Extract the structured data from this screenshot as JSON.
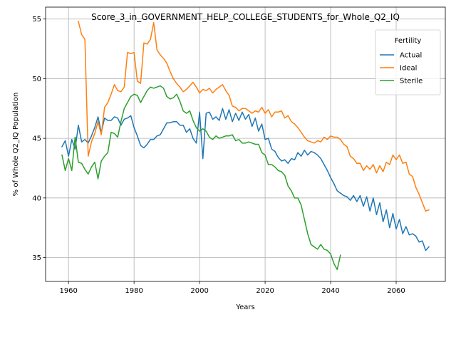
{
  "chart_data": {
    "type": "line",
    "title": "Score_3_in_GOVERNMENT_HELP_COLLEGE_STUDENTS_for_Whole_Q2_IQ",
    "xlabel": "Years",
    "ylabel": "% of Whole Q2_IQ Population",
    "xlim": [
      1953,
      2075
    ],
    "ylim": [
      33,
      56
    ],
    "xticks": [
      1960,
      1980,
      2000,
      2020,
      2040,
      2060
    ],
    "yticks": [
      35,
      40,
      45,
      50,
      55
    ],
    "grid": true,
    "legend_title": "Fertility",
    "legend_position": "upper right",
    "series": [
      {
        "name": "Actual",
        "color": "#1f77b4",
        "points": [
          [
            1958,
            44.3
          ],
          [
            1959,
            44.8
          ],
          [
            1960,
            43.5
          ],
          [
            1961,
            44.9
          ],
          [
            1962,
            44.1
          ],
          [
            1963,
            46.1
          ],
          [
            1964,
            44.7
          ],
          [
            1965,
            44.9
          ],
          [
            1966,
            44.6
          ],
          [
            1967,
            45.2
          ],
          [
            1968,
            45.9
          ],
          [
            1969,
            46.8
          ],
          [
            1970,
            45.5
          ],
          [
            1971,
            46.7
          ],
          [
            1972,
            46.5
          ],
          [
            1973,
            46.5
          ],
          [
            1974,
            46.8
          ],
          [
            1975,
            46.7
          ],
          [
            1976,
            46.1
          ],
          [
            1977,
            46.6
          ],
          [
            1978,
            46.7
          ],
          [
            1979,
            46.9
          ],
          [
            1980,
            45.9
          ],
          [
            1981,
            45.2
          ],
          [
            1982,
            44.4
          ],
          [
            1983,
            44.2
          ],
          [
            1984,
            44.5
          ],
          [
            1985,
            44.9
          ],
          [
            1986,
            44.9
          ],
          [
            1987,
            45.2
          ],
          [
            1988,
            45.3
          ],
          [
            1989,
            45.8
          ],
          [
            1990,
            46.3
          ],
          [
            1991,
            46.3
          ],
          [
            1992,
            46.4
          ],
          [
            1993,
            46.4
          ],
          [
            1994,
            46.1
          ],
          [
            1995,
            46.1
          ],
          [
            1996,
            45.5
          ],
          [
            1997,
            45.8
          ],
          [
            1998,
            45.0
          ],
          [
            1999,
            44.6
          ],
          [
            2000,
            47.2
          ],
          [
            2001,
            43.3
          ],
          [
            2002,
            47.1
          ],
          [
            2003,
            47.2
          ],
          [
            2004,
            46.6
          ],
          [
            2005,
            46.8
          ],
          [
            2006,
            46.5
          ],
          [
            2007,
            47.5
          ],
          [
            2008,
            46.6
          ],
          [
            2009,
            47.4
          ],
          [
            2010,
            46.4
          ],
          [
            2011,
            47.1
          ],
          [
            2012,
            46.5
          ],
          [
            2013,
            47.2
          ],
          [
            2014,
            46.6
          ],
          [
            2015,
            47.0
          ],
          [
            2016,
            46.0
          ],
          [
            2017,
            46.7
          ],
          [
            2018,
            45.6
          ],
          [
            2019,
            46.2
          ],
          [
            2020,
            44.9
          ],
          [
            2021,
            45.0
          ],
          [
            2022,
            44.1
          ],
          [
            2023,
            43.9
          ],
          [
            2024,
            43.4
          ],
          [
            2025,
            43.1
          ],
          [
            2026,
            43.2
          ],
          [
            2027,
            42.9
          ],
          [
            2028,
            43.3
          ],
          [
            2029,
            43.2
          ],
          [
            2030,
            43.8
          ],
          [
            2031,
            43.5
          ],
          [
            2032,
            44.0
          ],
          [
            2033,
            43.6
          ],
          [
            2034,
            43.9
          ],
          [
            2035,
            43.8
          ],
          [
            2036,
            43.6
          ],
          [
            2037,
            43.3
          ],
          [
            2038,
            42.8
          ],
          [
            2039,
            42.3
          ],
          [
            2040,
            41.7
          ],
          [
            2041,
            41.2
          ],
          [
            2042,
            40.6
          ],
          [
            2043,
            40.4
          ],
          [
            2044,
            40.2
          ],
          [
            2045,
            40.1
          ],
          [
            2046,
            39.8
          ],
          [
            2047,
            40.2
          ],
          [
            2048,
            39.7
          ],
          [
            2049,
            40.2
          ],
          [
            2050,
            39.3
          ],
          [
            2051,
            40.1
          ],
          [
            2052,
            38.9
          ],
          [
            2053,
            40.0
          ],
          [
            2054,
            38.6
          ],
          [
            2055,
            39.6
          ],
          [
            2056,
            38.0
          ],
          [
            2057,
            39.0
          ],
          [
            2058,
            37.5
          ],
          [
            2059,
            38.7
          ],
          [
            2060,
            37.4
          ],
          [
            2061,
            38.2
          ],
          [
            2062,
            37.0
          ],
          [
            2063,
            37.6
          ],
          [
            2064,
            36.9
          ],
          [
            2065,
            37.0
          ],
          [
            2066,
            36.8
          ],
          [
            2067,
            36.3
          ],
          [
            2068,
            36.4
          ],
          [
            2069,
            35.6
          ],
          [
            2070,
            35.9
          ]
        ]
      },
      {
        "name": "Ideal",
        "color": "#ff7f0e",
        "points": [
          [
            1963,
            54.8
          ],
          [
            1964,
            53.7
          ],
          [
            1965,
            53.3
          ],
          [
            1966,
            43.5
          ],
          [
            1967,
            44.7
          ],
          [
            1968,
            45.4
          ],
          [
            1969,
            46.4
          ],
          [
            1970,
            45.3
          ],
          [
            1971,
            47.6
          ],
          [
            1972,
            48.0
          ],
          [
            1973,
            48.7
          ],
          [
            1974,
            49.5
          ],
          [
            1975,
            49.0
          ],
          [
            1976,
            48.9
          ],
          [
            1977,
            49.3
          ],
          [
            1978,
            52.2
          ],
          [
            1979,
            52.1
          ],
          [
            1980,
            52.2
          ],
          [
            1981,
            49.8
          ],
          [
            1982,
            49.6
          ],
          [
            1983,
            53.0
          ],
          [
            1984,
            52.9
          ],
          [
            1985,
            53.3
          ],
          [
            1986,
            54.7
          ],
          [
            1987,
            52.4
          ],
          [
            1988,
            52.0
          ],
          [
            1989,
            51.7
          ],
          [
            1990,
            51.3
          ],
          [
            1991,
            50.6
          ],
          [
            1992,
            50.0
          ],
          [
            1993,
            49.6
          ],
          [
            1994,
            49.3
          ],
          [
            1995,
            48.9
          ],
          [
            1996,
            49.1
          ],
          [
            1997,
            49.4
          ],
          [
            1998,
            49.7
          ],
          [
            1999,
            49.3
          ],
          [
            2000,
            48.8
          ],
          [
            2001,
            49.1
          ],
          [
            2002,
            49.0
          ],
          [
            2003,
            49.2
          ],
          [
            2004,
            48.8
          ],
          [
            2005,
            49.1
          ],
          [
            2006,
            49.3
          ],
          [
            2007,
            49.5
          ],
          [
            2008,
            49.0
          ],
          [
            2009,
            48.6
          ],
          [
            2010,
            47.7
          ],
          [
            2011,
            47.6
          ],
          [
            2012,
            47.3
          ],
          [
            2013,
            47.5
          ],
          [
            2014,
            47.5
          ],
          [
            2015,
            47.3
          ],
          [
            2016,
            47.1
          ],
          [
            2017,
            47.3
          ],
          [
            2018,
            47.2
          ],
          [
            2019,
            47.6
          ],
          [
            2020,
            47.1
          ],
          [
            2021,
            47.4
          ],
          [
            2022,
            46.8
          ],
          [
            2023,
            47.2
          ],
          [
            2024,
            47.2
          ],
          [
            2025,
            47.3
          ],
          [
            2026,
            46.7
          ],
          [
            2027,
            46.9
          ],
          [
            2028,
            46.4
          ],
          [
            2029,
            46.2
          ],
          [
            2030,
            45.9
          ],
          [
            2031,
            45.5
          ],
          [
            2032,
            45.1
          ],
          [
            2033,
            44.8
          ],
          [
            2034,
            44.7
          ],
          [
            2035,
            44.6
          ],
          [
            2036,
            44.8
          ],
          [
            2037,
            44.7
          ],
          [
            2038,
            45.1
          ],
          [
            2039,
            44.9
          ],
          [
            2040,
            45.2
          ],
          [
            2041,
            45.1
          ],
          [
            2042,
            45.1
          ],
          [
            2043,
            44.9
          ],
          [
            2044,
            44.5
          ],
          [
            2045,
            44.3
          ],
          [
            2046,
            43.5
          ],
          [
            2047,
            43.3
          ],
          [
            2048,
            42.9
          ],
          [
            2049,
            42.9
          ],
          [
            2050,
            42.3
          ],
          [
            2051,
            42.7
          ],
          [
            2052,
            42.4
          ],
          [
            2053,
            42.8
          ],
          [
            2054,
            42.1
          ],
          [
            2055,
            42.7
          ],
          [
            2056,
            42.2
          ],
          [
            2057,
            43.0
          ],
          [
            2058,
            42.8
          ],
          [
            2059,
            43.6
          ],
          [
            2060,
            43.2
          ],
          [
            2061,
            43.6
          ],
          [
            2062,
            42.9
          ],
          [
            2063,
            43.0
          ],
          [
            2064,
            42.0
          ],
          [
            2065,
            41.8
          ],
          [
            2066,
            40.9
          ],
          [
            2067,
            40.3
          ],
          [
            2068,
            39.6
          ],
          [
            2069,
            38.9
          ],
          [
            2070,
            39.0
          ]
        ]
      },
      {
        "name": "Sterile",
        "color": "#2ca02c",
        "points": [
          [
            1958,
            43.6
          ],
          [
            1959,
            42.3
          ],
          [
            1960,
            43.3
          ],
          [
            1961,
            42.3
          ],
          [
            1962,
            45.1
          ],
          [
            1963,
            43.0
          ],
          [
            1964,
            42.9
          ],
          [
            1965,
            42.4
          ],
          [
            1966,
            42.0
          ],
          [
            1967,
            42.6
          ],
          [
            1968,
            43.0
          ],
          [
            1969,
            41.6
          ],
          [
            1970,
            43.1
          ],
          [
            1971,
            43.5
          ],
          [
            1972,
            43.8
          ],
          [
            1973,
            45.5
          ],
          [
            1974,
            45.4
          ],
          [
            1975,
            45.1
          ],
          [
            1976,
            46.4
          ],
          [
            1977,
            47.5
          ],
          [
            1978,
            48.0
          ],
          [
            1979,
            48.5
          ],
          [
            1980,
            48.7
          ],
          [
            1981,
            48.6
          ],
          [
            1982,
            48.0
          ],
          [
            1983,
            48.5
          ],
          [
            1984,
            49.0
          ],
          [
            1985,
            49.3
          ],
          [
            1986,
            49.2
          ],
          [
            1987,
            49.3
          ],
          [
            1988,
            49.4
          ],
          [
            1989,
            49.2
          ],
          [
            1990,
            48.5
          ],
          [
            1991,
            48.3
          ],
          [
            1992,
            48.4
          ],
          [
            1993,
            48.7
          ],
          [
            1994,
            48.1
          ],
          [
            1995,
            47.3
          ],
          [
            1996,
            47.1
          ],
          [
            1997,
            47.3
          ],
          [
            1998,
            46.5
          ],
          [
            1999,
            45.9
          ],
          [
            2000,
            45.6
          ],
          [
            2001,
            45.8
          ],
          [
            2002,
            45.6
          ],
          [
            2003,
            45.1
          ],
          [
            2004,
            44.9
          ],
          [
            2005,
            45.2
          ],
          [
            2006,
            45.0
          ],
          [
            2007,
            45.1
          ],
          [
            2008,
            45.2
          ],
          [
            2009,
            45.2
          ],
          [
            2010,
            45.3
          ],
          [
            2011,
            44.8
          ],
          [
            2012,
            44.9
          ],
          [
            2013,
            44.6
          ],
          [
            2014,
            44.6
          ],
          [
            2015,
            44.7
          ],
          [
            2016,
            44.6
          ],
          [
            2017,
            44.5
          ],
          [
            2018,
            44.5
          ],
          [
            2019,
            43.8
          ],
          [
            2020,
            43.6
          ],
          [
            2021,
            42.8
          ],
          [
            2022,
            42.8
          ],
          [
            2023,
            42.6
          ],
          [
            2024,
            42.3
          ],
          [
            2025,
            42.2
          ],
          [
            2026,
            41.9
          ],
          [
            2027,
            41.0
          ],
          [
            2028,
            40.6
          ],
          [
            2029,
            40.0
          ],
          [
            2030,
            40.0
          ],
          [
            2031,
            39.4
          ],
          [
            2032,
            38.2
          ],
          [
            2033,
            37.0
          ],
          [
            2034,
            36.1
          ],
          [
            2035,
            35.9
          ],
          [
            2036,
            35.7
          ],
          [
            2037,
            36.1
          ],
          [
            2038,
            35.7
          ],
          [
            2039,
            35.6
          ],
          [
            2040,
            35.3
          ],
          [
            2041,
            34.5
          ],
          [
            2042,
            34.0
          ],
          [
            2043,
            35.2
          ]
        ]
      }
    ]
  }
}
